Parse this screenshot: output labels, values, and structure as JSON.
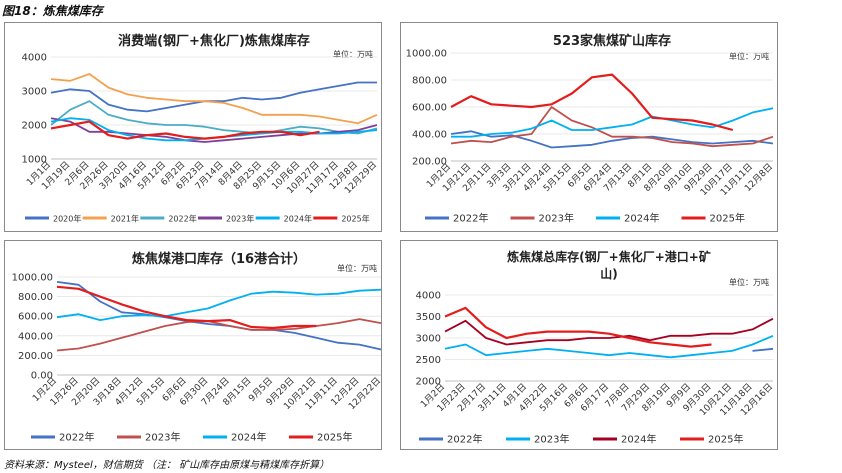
{
  "figure_title": "图18：炼焦煤库存",
  "source_note": "资料来源：Mysteel，财信期货 （注： 矿山库存由原煤与精煤库存折算）",
  "chart_data": [
    {
      "type": "line",
      "title": "消费端(钢厂+焦化厂)炼焦煤库存",
      "unit": "单位：万吨",
      "ylim": [
        1000,
        4000
      ],
      "yticks": [
        "1000",
        "2000",
        "3000",
        "4000"
      ],
      "xticks": [
        "1月1日",
        "1月19日",
        "2月6日",
        "2月26日",
        "3月20日",
        "4月16日",
        "5月12日",
        "6月2日",
        "6月23日",
        "7月14日",
        "8月4日",
        "8月25日",
        "9月15日",
        "10月6日",
        "10月27日",
        "11月17日",
        "12月8日",
        "12月29日"
      ],
      "series": [
        {
          "name": "2020年",
          "color": "#4472c4",
          "values": [
            2950,
            3050,
            3000,
            2600,
            2450,
            2400,
            2500,
            2600,
            2700,
            2700,
            2800,
            2750,
            2800,
            2950,
            3050,
            3150,
            3250,
            3250
          ]
        },
        {
          "name": "2021年",
          "color": "#f4a14f",
          "values": [
            3350,
            3300,
            3500,
            3100,
            2900,
            2800,
            2750,
            2700,
            2700,
            2650,
            2500,
            2300,
            2300,
            2300,
            2250,
            2150,
            2050,
            2300
          ]
        },
        {
          "name": "2022年",
          "color": "#4bacc6",
          "values": [
            2000,
            2450,
            2700,
            2300,
            2150,
            2050,
            2000,
            2000,
            1950,
            1850,
            1800,
            1750,
            1850,
            1950,
            1900,
            1800,
            1750,
            1900
          ]
        },
        {
          "name": "2023年",
          "color": "#7f3f98",
          "values": [
            2200,
            2100,
            1800,
            1800,
            1750,
            1700,
            1650,
            1550,
            1500,
            1550,
            1600,
            1650,
            1700,
            1750,
            1750,
            1800,
            1850,
            2000
          ]
        },
        {
          "name": "2024年",
          "color": "#00b0f0",
          "values": [
            2100,
            2200,
            2150,
            1850,
            1700,
            1600,
            1550,
            1550,
            1600,
            1650,
            1700,
            1750,
            1800,
            1800,
            1750,
            1750,
            1800,
            1850
          ]
        },
        {
          "name": "2025年",
          "color": "#e31c1c",
          "values": [
            1900,
            2000,
            2100,
            1700,
            1600,
            1700,
            1750,
            1650,
            1600,
            1650,
            1750,
            1800,
            1800,
            1700,
            1800
          ]
        }
      ]
    },
    {
      "type": "line",
      "title": "523家焦煤矿山库存",
      "unit": "单位：万吨",
      "ylim": [
        200,
        1000
      ],
      "yticks": [
        "200.00",
        "400.00",
        "600.00",
        "800.00",
        "1000.00"
      ],
      "xticks": [
        "1月2日",
        "1月21日",
        "2月11日",
        "3月3日",
        "3月21日",
        "4月24日",
        "5月15日",
        "6月5日",
        "6月24日",
        "7月13日",
        "8月1日",
        "8月20日",
        "9月10日",
        "9月29日",
        "10月17日",
        "11月11日",
        "12月8日"
      ],
      "series": [
        {
          "name": "2022年",
          "color": "#4472c4",
          "values": [
            400,
            420,
            380,
            390,
            350,
            300,
            310,
            320,
            350,
            370,
            380,
            360,
            340,
            330,
            340,
            350,
            330
          ]
        },
        {
          "name": "2023年",
          "color": "#c0504d",
          "values": [
            330,
            350,
            340,
            380,
            400,
            600,
            500,
            450,
            380,
            380,
            370,
            340,
            330,
            310,
            320,
            330,
            380
          ]
        },
        {
          "name": "2024年",
          "color": "#00b0f0",
          "values": [
            380,
            380,
            400,
            410,
            440,
            500,
            430,
            430,
            450,
            470,
            530,
            500,
            470,
            450,
            500,
            560,
            590
          ]
        },
        {
          "name": "2025年",
          "color": "#e31c1c",
          "values": [
            600,
            680,
            620,
            610,
            600,
            620,
            700,
            820,
            840,
            700,
            520,
            510,
            500,
            470,
            430
          ]
        }
      ]
    },
    {
      "type": "line",
      "title": "炼焦煤港口库存（16港合计）",
      "unit": "单位：万吨",
      "ylim": [
        0,
        1000
      ],
      "yticks": [
        "0.00",
        "200.00",
        "400.00",
        "600.00",
        "800.00",
        "1000.00"
      ],
      "xticks": [
        "1月2日",
        "1月26日",
        "2月20日",
        "3月18日",
        "4月12日",
        "5月15日",
        "6月6日",
        "6月30日",
        "7月24日",
        "8月15日",
        "9月5日",
        "9月29日",
        "10月21日",
        "11月11日",
        "12月2日",
        "12月22日"
      ],
      "series": [
        {
          "name": "2022年",
          "color": "#4472c4",
          "values": [
            950,
            920,
            750,
            640,
            620,
            590,
            550,
            520,
            500,
            460,
            460,
            430,
            380,
            330,
            310,
            260
          ]
        },
        {
          "name": "2023年",
          "color": "#c0504d",
          "values": [
            250,
            270,
            320,
            380,
            440,
            500,
            540,
            550,
            500,
            460,
            460,
            470,
            500,
            530,
            570,
            530
          ]
        },
        {
          "name": "2024年",
          "color": "#00b0f0",
          "values": [
            590,
            620,
            560,
            600,
            610,
            600,
            640,
            680,
            760,
            830,
            850,
            840,
            820,
            830,
            860,
            870
          ]
        },
        {
          "name": "2025年",
          "color": "#e31c1c",
          "values": [
            900,
            880,
            800,
            720,
            650,
            600,
            560,
            550,
            560,
            490,
            480,
            500,
            500
          ]
        }
      ]
    },
    {
      "type": "line",
      "title": "炼焦煤总库存(钢厂+焦化厂+港口+矿山)",
      "unit": "单位：万吨",
      "ylim": [
        2000,
        4000
      ],
      "yticks": [
        "2000",
        "2500",
        "3000",
        "3500",
        "4000"
      ],
      "xticks": [
        "1月2日",
        "1月23日",
        "2月17日",
        "3月11日",
        "4月1日",
        "4月22日",
        "5月16日",
        "6月6日",
        "6月17日",
        "7月8日",
        "7月29日",
        "8月19日",
        "9月9日",
        "9月30日",
        "10月21日",
        "11月18日",
        "12月16日"
      ],
      "series": [
        {
          "name": "2022年",
          "color": "#4472c4",
          "values": [
            null,
            null,
            null,
            null,
            null,
            null,
            null,
            null,
            null,
            null,
            null,
            null,
            null,
            null,
            null,
            2700,
            2750
          ]
        },
        {
          "name": "2023年",
          "color": "#00b0f0",
          "values": [
            2750,
            2850,
            2600,
            2650,
            2700,
            2750,
            2700,
            2650,
            2600,
            2650,
            2600,
            2550,
            2600,
            2650,
            2700,
            2850,
            3050
          ]
        },
        {
          "name": "2024年",
          "color": "#a50021",
          "values": [
            3150,
            3400,
            3000,
            2850,
            2900,
            2950,
            2950,
            3000,
            3000,
            3050,
            2950,
            3050,
            3050,
            3100,
            3100,
            3200,
            3450
          ]
        },
        {
          "name": "2025年",
          "color": "#e31c1c",
          "values": [
            3500,
            3700,
            3250,
            3000,
            3100,
            3150,
            3150,
            3150,
            3100,
            3000,
            2900,
            2850,
            2800,
            2850
          ]
        }
      ]
    }
  ]
}
